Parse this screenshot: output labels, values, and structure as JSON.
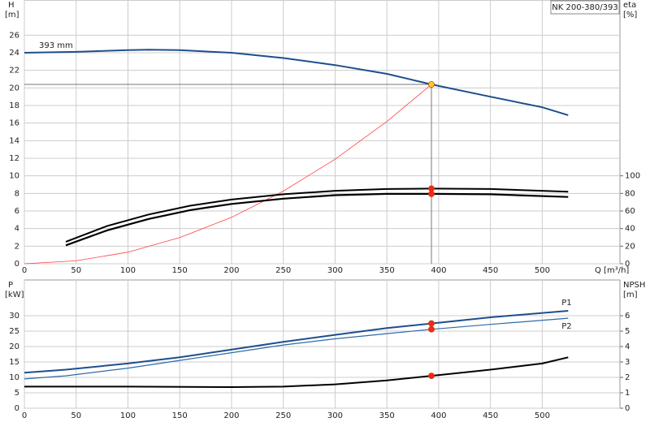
{
  "chart_data": [
    {
      "type": "line",
      "title": "NK 200-380/393",
      "ylabel": [
        "H",
        "[m]"
      ],
      "y2label": [
        "eta",
        "[%]"
      ],
      "xlabel": "Q [m³/h]",
      "xlim": [
        0,
        575
      ],
      "xticks": [
        0,
        50,
        100,
        150,
        200,
        250,
        300,
        350,
        400,
        450,
        500
      ],
      "ylim": [
        0,
        30
      ],
      "yticks": [
        0,
        2,
        4,
        6,
        8,
        10,
        12,
        14,
        16,
        18,
        20,
        22,
        24,
        26
      ],
      "y2lim": [
        0,
        300
      ],
      "y2ticks": [
        0,
        20,
        40,
        60,
        80,
        100
      ],
      "grid": true,
      "marker_x": 393,
      "guide_lines": true,
      "series": [
        {
          "name": "393 mm",
          "color": "#1f4e8c",
          "line_width": 2,
          "marker_color": "#ffd21f",
          "x": [
            0,
            50,
            100,
            120,
            150,
            200,
            250,
            300,
            350,
            393,
            450,
            500,
            525
          ],
          "values": [
            24,
            24.1,
            24.3,
            24.35,
            24.3,
            24.0,
            23.4,
            22.6,
            21.6,
            20.4,
            19.0,
            17.8,
            16.9
          ]
        },
        {
          "color": "#ff4040",
          "line_width": 0.8,
          "x": [
            0,
            50,
            100,
            150,
            200,
            250,
            300,
            350,
            393
          ],
          "values": [
            0,
            0.33,
            1.32,
            2.97,
            5.28,
            8.26,
            11.89,
            16.18,
            20.4
          ]
        },
        {
          "color": "#000000",
          "line_width": 2,
          "axis": "y2",
          "marker_color": "#ff2020",
          "x": [
            40,
            80,
            120,
            160,
            200,
            250,
            300,
            350,
            393,
            450,
            525
          ],
          "values": [
            25,
            43,
            56,
            66,
            73,
            79,
            83,
            85,
            85.5,
            85,
            82
          ]
        },
        {
          "color": "#000000",
          "line_width": 2.2,
          "axis": "y2",
          "marker_color": "#ff2020",
          "x": [
            40,
            80,
            120,
            160,
            200,
            250,
            300,
            350,
            393,
            450,
            525
          ],
          "values": [
            21,
            38,
            51,
            61,
            68,
            74,
            78,
            79.5,
            79.5,
            79,
            76
          ]
        }
      ]
    },
    {
      "type": "line",
      "ylabel": [
        "P",
        "[kW]"
      ],
      "y2label": [
        "NPSH",
        "[m]"
      ],
      "xlim": [
        0,
        575
      ],
      "xticks": [
        0,
        50,
        100,
        150,
        200,
        250,
        300,
        350,
        400,
        450,
        500
      ],
      "ylim": [
        0,
        41.6
      ],
      "yticks": [
        0,
        5,
        10,
        15,
        20,
        25,
        30
      ],
      "y2lim": [
        0,
        8.32
      ],
      "y2ticks": [
        0,
        1,
        2,
        3,
        4,
        5,
        6
      ],
      "grid": true,
      "marker_x": 393,
      "series": [
        {
          "name": "P1",
          "color": "#1f4e8c",
          "line_width": 2,
          "marker_color": "#ff2020",
          "x": [
            0,
            40,
            100,
            150,
            200,
            250,
            300,
            350,
            393,
            450,
            525
          ],
          "values": [
            11.5,
            12.5,
            14.5,
            16.5,
            19,
            21.5,
            23.8,
            26,
            27.5,
            29.5,
            31.6
          ]
        },
        {
          "name": "P2",
          "color": "#2d6aa8",
          "line_width": 1.2,
          "marker_color": "#ff2020",
          "x": [
            0,
            40,
            100,
            150,
            200,
            250,
            300,
            350,
            393,
            450,
            525
          ],
          "values": [
            9.5,
            10.5,
            13,
            15.5,
            18,
            20.5,
            22.5,
            24.2,
            25.6,
            27.2,
            29.2
          ]
        },
        {
          "color": "#000000",
          "line_width": 2,
          "axis": "y2",
          "marker_color": "#ff2020",
          "x": [
            0,
            100,
            200,
            250,
            300,
            350,
            393,
            450,
            500,
            525
          ],
          "values": [
            1.4,
            1.4,
            1.37,
            1.4,
            1.55,
            1.8,
            2.1,
            2.5,
            2.9,
            3.3
          ]
        }
      ]
    }
  ]
}
